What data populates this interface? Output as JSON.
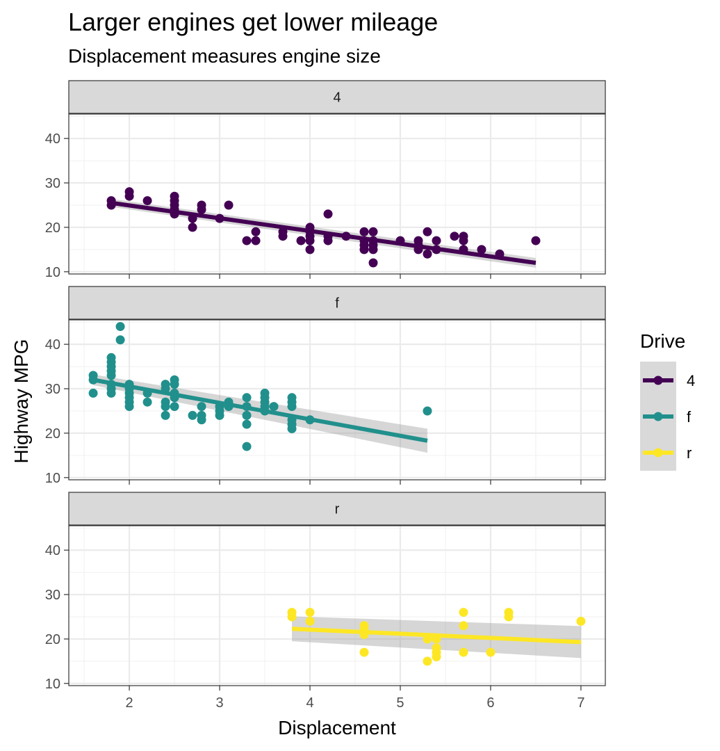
{
  "chart_data": {
    "type": "scatter",
    "title": "Larger engines get lower mileage",
    "subtitle": "Displacement measures engine size",
    "xlabel": "Displacement",
    "ylabel": "Highway MPG",
    "xlim": [
      1.33,
      7.27
    ],
    "ylim": [
      9.5,
      45.5
    ],
    "x_ticks": [
      2,
      3,
      4,
      5,
      6,
      7
    ],
    "y_ticks": [
      10,
      20,
      30,
      40
    ],
    "grid": true,
    "legend": {
      "title": "Drive",
      "position": "right",
      "entries": [
        "4",
        "f",
        "r"
      ]
    },
    "colors": {
      "4": "#440154",
      "f": "#21908C",
      "r": "#FDE725"
    },
    "panels": [
      {
        "label": "4",
        "color": "#440154",
        "fit": {
          "x": [
            1.8,
            6.5
          ],
          "y": [
            25.5,
            12.0
          ],
          "band_halfwidth": [
            0.9,
            1.1
          ]
        },
        "points": [
          [
            1.8,
            26
          ],
          [
            1.8,
            25
          ],
          [
            2.0,
            28
          ],
          [
            2.0,
            27
          ],
          [
            2.2,
            26
          ],
          [
            2.5,
            27
          ],
          [
            2.5,
            26
          ],
          [
            2.5,
            25
          ],
          [
            2.5,
            24
          ],
          [
            2.5,
            23
          ],
          [
            2.7,
            22
          ],
          [
            2.7,
            20
          ],
          [
            2.8,
            25
          ],
          [
            2.8,
            24
          ],
          [
            3.0,
            22
          ],
          [
            3.1,
            25
          ],
          [
            3.3,
            17
          ],
          [
            3.4,
            19
          ],
          [
            3.4,
            17
          ],
          [
            3.7,
            19
          ],
          [
            3.7,
            18
          ],
          [
            3.9,
            17
          ],
          [
            4.0,
            20
          ],
          [
            4.0,
            19
          ],
          [
            4.0,
            18
          ],
          [
            4.0,
            17
          ],
          [
            4.0,
            15
          ],
          [
            4.2,
            23
          ],
          [
            4.2,
            18
          ],
          [
            4.2,
            17
          ],
          [
            4.4,
            18
          ],
          [
            4.6,
            19
          ],
          [
            4.6,
            17
          ],
          [
            4.6,
            16
          ],
          [
            4.6,
            15
          ],
          [
            4.7,
            19
          ],
          [
            4.7,
            17
          ],
          [
            4.7,
            16
          ],
          [
            4.7,
            15
          ],
          [
            4.7,
            12
          ],
          [
            5.0,
            17
          ],
          [
            5.2,
            17
          ],
          [
            5.2,
            16
          ],
          [
            5.2,
            15
          ],
          [
            5.3,
            19
          ],
          [
            5.3,
            14
          ],
          [
            5.4,
            17
          ],
          [
            5.4,
            15
          ],
          [
            5.6,
            18
          ],
          [
            5.7,
            18
          ],
          [
            5.7,
            17
          ],
          [
            5.7,
            15
          ],
          [
            5.9,
            15
          ],
          [
            6.1,
            14
          ],
          [
            6.5,
            17
          ]
        ]
      },
      {
        "label": "f",
        "color": "#21908C",
        "fit": {
          "x": [
            1.6,
            5.3
          ],
          "y": [
            32.0,
            18.3
          ],
          "band_halfwidth": [
            1.2,
            2.7
          ]
        },
        "points": [
          [
            1.6,
            33
          ],
          [
            1.6,
            32
          ],
          [
            1.6,
            29
          ],
          [
            1.8,
            37
          ],
          [
            1.8,
            36
          ],
          [
            1.8,
            35
          ],
          [
            1.8,
            34
          ],
          [
            1.8,
            33
          ],
          [
            1.8,
            31
          ],
          [
            1.8,
            30
          ],
          [
            1.8,
            29
          ],
          [
            1.9,
            44
          ],
          [
            1.9,
            41
          ],
          [
            2.0,
            31
          ],
          [
            2.0,
            30
          ],
          [
            2.0,
            29
          ],
          [
            2.0,
            28
          ],
          [
            2.0,
            27
          ],
          [
            2.0,
            26
          ],
          [
            2.2,
            29
          ],
          [
            2.2,
            27
          ],
          [
            2.4,
            31
          ],
          [
            2.4,
            30
          ],
          [
            2.4,
            27
          ],
          [
            2.4,
            26
          ],
          [
            2.4,
            24
          ],
          [
            2.5,
            32
          ],
          [
            2.5,
            31
          ],
          [
            2.5,
            29
          ],
          [
            2.5,
            28
          ],
          [
            2.5,
            26
          ],
          [
            2.7,
            24
          ],
          [
            2.8,
            26
          ],
          [
            2.8,
            24
          ],
          [
            2.8,
            23
          ],
          [
            3.0,
            26
          ],
          [
            3.0,
            25
          ],
          [
            3.0,
            24
          ],
          [
            3.1,
            27
          ],
          [
            3.1,
            26
          ],
          [
            3.3,
            28
          ],
          [
            3.3,
            26
          ],
          [
            3.3,
            24
          ],
          [
            3.3,
            22
          ],
          [
            3.3,
            17
          ],
          [
            3.5,
            29
          ],
          [
            3.5,
            28
          ],
          [
            3.5,
            27
          ],
          [
            3.5,
            26
          ],
          [
            3.5,
            25
          ],
          [
            3.6,
            26
          ],
          [
            3.8,
            28
          ],
          [
            3.8,
            27
          ],
          [
            3.8,
            26
          ],
          [
            3.8,
            23
          ],
          [
            3.8,
            22
          ],
          [
            3.8,
            21
          ],
          [
            4.0,
            23
          ],
          [
            5.3,
            25
          ]
        ]
      },
      {
        "label": "r",
        "color": "#FDE725",
        "fit": {
          "x": [
            3.8,
            7.0
          ],
          "y": [
            22.3,
            19.3
          ],
          "band_halfwidth": [
            2.8,
            3.6
          ]
        },
        "points": [
          [
            3.8,
            26
          ],
          [
            3.8,
            25
          ],
          [
            4.0,
            26
          ],
          [
            4.0,
            24
          ],
          [
            4.6,
            23
          ],
          [
            4.6,
            22
          ],
          [
            4.6,
            21
          ],
          [
            4.6,
            17
          ],
          [
            5.3,
            20
          ],
          [
            5.3,
            15
          ],
          [
            5.4,
            20
          ],
          [
            5.4,
            18
          ],
          [
            5.4,
            17
          ],
          [
            5.4,
            16
          ],
          [
            5.7,
            26
          ],
          [
            5.7,
            23
          ],
          [
            5.7,
            17
          ],
          [
            6.0,
            17
          ],
          [
            6.2,
            26
          ],
          [
            6.2,
            25
          ],
          [
            7.0,
            24
          ]
        ]
      }
    ]
  }
}
